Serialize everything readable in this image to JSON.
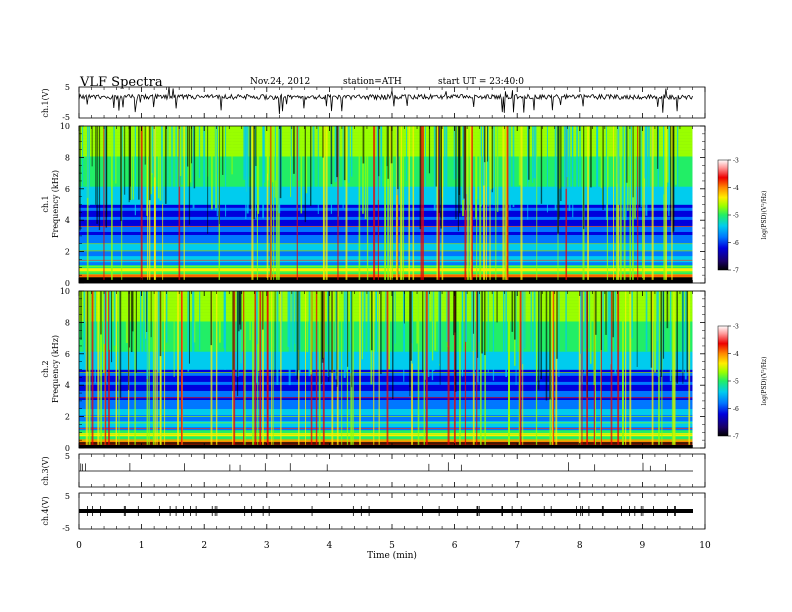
{
  "header": {
    "title": "VLF  Spectra",
    "date": "Nov.24, 2012",
    "station": "station=ATH",
    "start": "start  UT  =   23:40:0"
  },
  "chart_data": {
    "type": "heatmap",
    "x_axis": {
      "label": "Time  (min)",
      "range": [
        0,
        10
      ],
      "ticks": [
        "0",
        "1",
        "2",
        "3",
        "4",
        "5",
        "6",
        "7",
        "8",
        "9",
        "10"
      ],
      "data_end_min": 9.8
    },
    "panels": [
      {
        "id": "ch1-waveform",
        "type": "line",
        "ylabel": "ch.1(V)",
        "ylim": [
          -5,
          5
        ],
        "ticks": [
          "5",
          "-5"
        ],
        "description_level": "noisy waveform near +2 V"
      },
      {
        "id": "ch1-spectrogram",
        "type": "heatmap",
        "ylabel": "ch.1\nFrequency  (kHz)",
        "ylim": [
          0,
          10
        ],
        "ticks": [
          "0",
          "2",
          "4",
          "6",
          "8",
          "10"
        ],
        "colorbar": {
          "label": "log(PSD)(V²/Hz)",
          "range": [
            -7,
            -3
          ],
          "ticks": [
            "-3",
            "-4",
            "-5",
            "-6",
            "-7"
          ]
        }
      },
      {
        "id": "ch2-spectrogram",
        "type": "heatmap",
        "ylabel": "ch.2\nFrequency  (kHz)",
        "ylim": [
          0,
          10
        ],
        "ticks": [
          "0",
          "2",
          "4",
          "6",
          "8",
          "10"
        ],
        "colorbar": {
          "label": "log(PSD)(V²/Hz)",
          "range": [
            -7,
            -3
          ],
          "ticks": [
            "-3",
            "-4",
            "-5",
            "-6",
            "-7"
          ]
        }
      },
      {
        "id": "ch3-waveform",
        "type": "line",
        "ylabel": "ch.3(V)",
        "ylim": [
          -5,
          5
        ],
        "ticks": [
          "5"
        ],
        "level": 0
      },
      {
        "id": "ch4-waveform",
        "type": "line",
        "ylabel": "ch.4(V)",
        "ylim": [
          -5,
          5
        ],
        "ticks": [
          "5",
          "-5"
        ],
        "level": 0
      }
    ],
    "colormap": [
      "#000000",
      "#1a0066",
      "#0000dd",
      "#0077ff",
      "#00ccee",
      "#22ee66",
      "#99ff00",
      "#ffee00",
      "#ff8800",
      "#ee0000",
      "#ff9999",
      "#ffffff"
    ]
  }
}
